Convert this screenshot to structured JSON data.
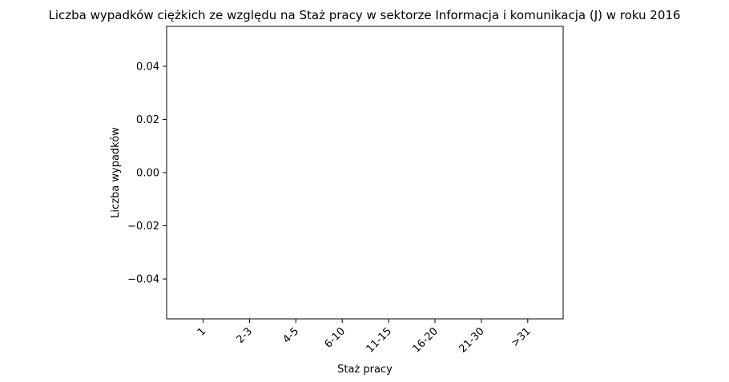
{
  "chart_data": {
    "type": "bar",
    "title": "Liczba wypadków ciężkich ze względu na Staż pracy w sektorze Informacja i komunikacja (J)   w roku 2016",
    "xlabel": "Staż pracy",
    "ylabel": "Liczba wypadków",
    "categories": [
      "1",
      "2-3",
      "4-5",
      "6-10",
      "11-15",
      "16-20",
      "21-30",
      ">31"
    ],
    "values": [
      0,
      0,
      0,
      0,
      0,
      0,
      0,
      0
    ],
    "yticks": [
      0.04,
      0.02,
      0.0,
      -0.02,
      -0.04
    ],
    "ytick_labels": [
      "0.04",
      "0.02",
      "0.00",
      "−0.02",
      "−0.04"
    ],
    "ylim": [
      -0.055,
      0.055
    ],
    "grid": false,
    "bar_color": "#1f77b4"
  }
}
